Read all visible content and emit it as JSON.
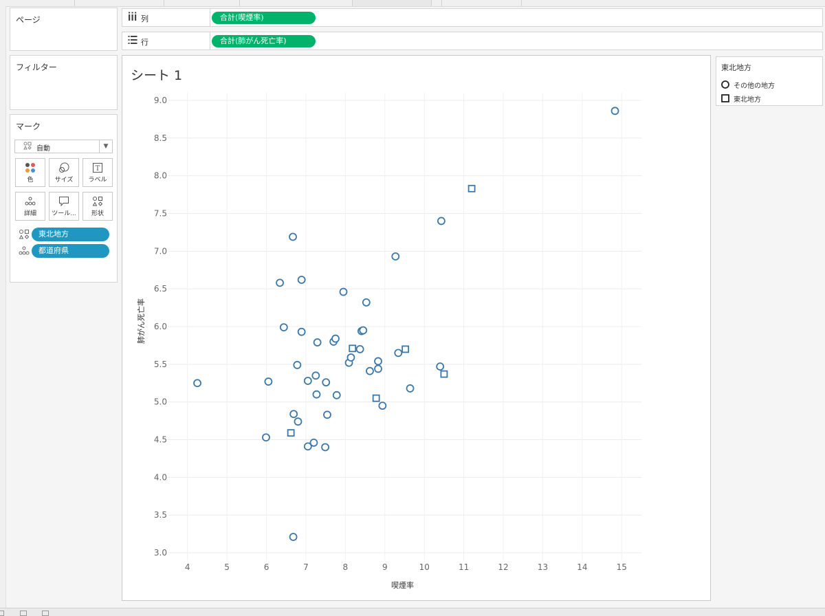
{
  "panels": {
    "pages_title": "ページ",
    "filters_title": "フィルター",
    "marks_title": "マーク"
  },
  "shelves": {
    "columns": {
      "label": "列",
      "icon": "columns-icon",
      "pill": "合計(喫煙率)"
    },
    "rows": {
      "label": "行",
      "icon": "rows-icon",
      "pill": "合計(肺がん死亡率)"
    }
  },
  "marks": {
    "type_dropdown": "自動",
    "buttons": [
      {
        "label": "色",
        "icon": "color-icon"
      },
      {
        "label": "サイズ",
        "icon": "size-icon"
      },
      {
        "label": "ラベル",
        "icon": "label-icon"
      },
      {
        "label": "詳細",
        "icon": "detail-icon"
      },
      {
        "label": "ツール...",
        "icon": "tooltip-icon"
      },
      {
        "label": "形状",
        "icon": "shape-icon"
      }
    ],
    "pills": [
      {
        "label": "東北地方",
        "icon": "shape-icon"
      },
      {
        "label": "都道府県",
        "icon": "detail-icon"
      }
    ]
  },
  "viz": {
    "title": "シート 1"
  },
  "legend": {
    "title": "東北地方",
    "items": [
      {
        "label": "その他の地方",
        "shape": "circle"
      },
      {
        "label": "東北地方",
        "shape": "square"
      }
    ]
  },
  "colors": {
    "mark": "#3b77a8",
    "pill_green": "#00b36b",
    "pill_blue": "#1f97c2"
  },
  "chart_data": {
    "type": "scatter",
    "title": "シート 1",
    "xlabel": "喫煙率",
    "ylabel": "肺がん死亡率",
    "xlim": [
      3.5,
      15.5
    ],
    "ylim": [
      2.9,
      9.1
    ],
    "xticks": [
      4,
      5,
      6,
      7,
      8,
      9,
      10,
      11,
      12,
      13,
      14,
      15
    ],
    "yticks": [
      3.0,
      3.5,
      4.0,
      4.5,
      5.0,
      5.5,
      6.0,
      6.5,
      7.0,
      7.5,
      8.0,
      8.5,
      9.0
    ],
    "grid": true,
    "legend_position": "right",
    "series": [
      {
        "name": "その他の地方",
        "shape": "circle",
        "points": [
          [
            4.25,
            5.25
          ],
          [
            6.05,
            5.27
          ],
          [
            5.99,
            4.53
          ],
          [
            6.34,
            6.58
          ],
          [
            6.44,
            5.99
          ],
          [
            6.89,
            6.62
          ],
          [
            6.67,
            7.19
          ],
          [
            6.89,
            5.93
          ],
          [
            6.78,
            5.49
          ],
          [
            6.69,
            4.84
          ],
          [
            6.8,
            4.74
          ],
          [
            6.68,
            3.21
          ],
          [
            7.05,
            4.41
          ],
          [
            7.2,
            4.46
          ],
          [
            7.05,
            5.28
          ],
          [
            7.25,
            5.35
          ],
          [
            7.27,
            5.1
          ],
          [
            7.29,
            5.79
          ],
          [
            7.49,
            4.4
          ],
          [
            7.51,
            5.26
          ],
          [
            7.54,
            4.83
          ],
          [
            7.7,
            5.8
          ],
          [
            7.75,
            5.84
          ],
          [
            7.78,
            5.09
          ],
          [
            7.95,
            6.46
          ],
          [
            8.09,
            5.52
          ],
          [
            8.14,
            5.59
          ],
          [
            8.37,
            5.7
          ],
          [
            8.41,
            5.94
          ],
          [
            8.45,
            5.95
          ],
          [
            8.53,
            6.32
          ],
          [
            8.62,
            5.41
          ],
          [
            8.83,
            5.54
          ],
          [
            8.83,
            5.44
          ],
          [
            8.94,
            4.95
          ],
          [
            9.27,
            6.93
          ],
          [
            9.34,
            5.65
          ],
          [
            9.64,
            5.18
          ],
          [
            10.4,
            5.47
          ],
          [
            10.43,
            7.4
          ],
          [
            14.83,
            8.86
          ]
        ]
      },
      {
        "name": "東北地方",
        "shape": "square",
        "points": [
          [
            6.62,
            4.59
          ],
          [
            8.18,
            5.71
          ],
          [
            8.78,
            5.05
          ],
          [
            9.52,
            5.7
          ],
          [
            10.5,
            5.37
          ],
          [
            11.2,
            7.83
          ]
        ]
      }
    ]
  }
}
